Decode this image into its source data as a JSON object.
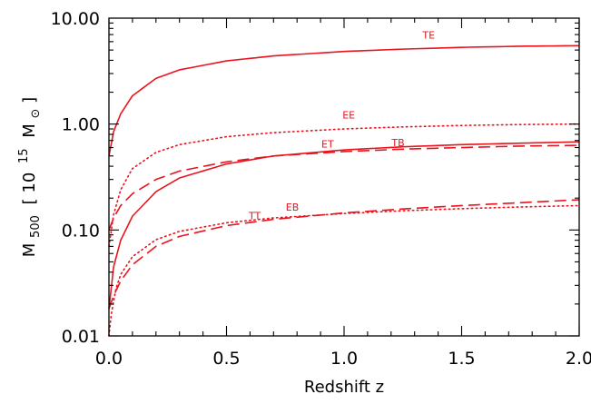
{
  "chart_data": {
    "type": "line",
    "title": "",
    "xlabel": "Redshift  z",
    "ylabel": {
      "main": "M",
      "sub": "500",
      "bracket_open": "[",
      "factor": "10",
      "exp": "15",
      "unit": "M",
      "unit_symbol": "⊙",
      "bracket_close": "]"
    },
    "xlim": [
      0.0,
      2.0
    ],
    "ylim": [
      0.01,
      10.0
    ],
    "yscale": "log",
    "grid": false,
    "line_color": "#e8141e",
    "x_ticks": [
      {
        "value": 0.0,
        "label": "0.0"
      },
      {
        "value": 0.5,
        "label": "0.5"
      },
      {
        "value": 1.0,
        "label": "1.0"
      },
      {
        "value": 1.5,
        "label": "1.5"
      },
      {
        "value": 2.0,
        "label": "2.0"
      }
    ],
    "y_ticks": [
      {
        "value": 0.01,
        "label": "0.01"
      },
      {
        "value": 0.1,
        "label": "0.10"
      },
      {
        "value": 1.0,
        "label": "1.00"
      },
      {
        "value": 10.0,
        "label": "10.00"
      }
    ],
    "series": [
      {
        "name": "TE",
        "style": "solid",
        "label_pos": {
          "x": 1.36,
          "y": 6.4
        },
        "points": [
          [
            0.0,
            0.5
          ],
          [
            0.02,
            0.85
          ],
          [
            0.05,
            1.25
          ],
          [
            0.1,
            1.85
          ],
          [
            0.2,
            2.7
          ],
          [
            0.3,
            3.25
          ],
          [
            0.5,
            3.95
          ],
          [
            0.7,
            4.4
          ],
          [
            1.0,
            4.85
          ],
          [
            1.25,
            5.1
          ],
          [
            1.5,
            5.3
          ],
          [
            1.75,
            5.43
          ],
          [
            2.0,
            5.5
          ]
        ]
      },
      {
        "name": "EE",
        "style": "dotted",
        "label_pos": {
          "x": 1.02,
          "y": 1.13
        },
        "points": [
          [
            0.0,
            0.07
          ],
          [
            0.02,
            0.14
          ],
          [
            0.05,
            0.24
          ],
          [
            0.1,
            0.38
          ],
          [
            0.2,
            0.54
          ],
          [
            0.3,
            0.64
          ],
          [
            0.5,
            0.76
          ],
          [
            0.7,
            0.83
          ],
          [
            1.0,
            0.9
          ],
          [
            1.25,
            0.94
          ],
          [
            1.5,
            0.97
          ],
          [
            1.75,
            0.99
          ],
          [
            2.0,
            1.0
          ]
        ]
      },
      {
        "name": "ET",
        "style": "dashed",
        "label_pos": {
          "x": 0.93,
          "y": 0.6
        },
        "points": [
          [
            0.0,
            0.1
          ],
          [
            0.02,
            0.13
          ],
          [
            0.05,
            0.17
          ],
          [
            0.1,
            0.22
          ],
          [
            0.2,
            0.3
          ],
          [
            0.3,
            0.36
          ],
          [
            0.5,
            0.44
          ],
          [
            0.7,
            0.5
          ],
          [
            1.0,
            0.55
          ],
          [
            1.25,
            0.58
          ],
          [
            1.5,
            0.6
          ],
          [
            1.75,
            0.62
          ],
          [
            2.0,
            0.63
          ]
        ]
      },
      {
        "name": "TB",
        "style": "solid",
        "label_pos": {
          "x": 1.23,
          "y": 0.62
        },
        "points": [
          [
            0.0,
            0.018
          ],
          [
            0.02,
            0.045
          ],
          [
            0.05,
            0.08
          ],
          [
            0.1,
            0.135
          ],
          [
            0.2,
            0.23
          ],
          [
            0.3,
            0.31
          ],
          [
            0.5,
            0.42
          ],
          [
            0.7,
            0.5
          ],
          [
            1.0,
            0.57
          ],
          [
            1.25,
            0.61
          ],
          [
            1.5,
            0.64
          ],
          [
            1.75,
            0.66
          ],
          [
            2.0,
            0.68
          ]
        ]
      },
      {
        "name": "TT",
        "style": "dotted",
        "label_pos": {
          "x": 0.62,
          "y": 0.126
        },
        "points": [
          [
            0.0,
            0.01
          ],
          [
            0.01,
            0.016
          ],
          [
            0.03,
            0.028
          ],
          [
            0.05,
            0.038
          ],
          [
            0.1,
            0.056
          ],
          [
            0.2,
            0.081
          ],
          [
            0.3,
            0.097
          ],
          [
            0.5,
            0.117
          ],
          [
            0.7,
            0.13
          ],
          [
            1.0,
            0.143
          ],
          [
            1.25,
            0.152
          ],
          [
            1.5,
            0.159
          ],
          [
            1.75,
            0.165
          ],
          [
            2.0,
            0.17
          ]
        ]
      },
      {
        "name": "EB",
        "style": "dashed",
        "label_pos": {
          "x": 0.78,
          "y": 0.152
        },
        "points": [
          [
            0.0,
            0.018
          ],
          [
            0.02,
            0.024
          ],
          [
            0.05,
            0.033
          ],
          [
            0.1,
            0.047
          ],
          [
            0.2,
            0.07
          ],
          [
            0.3,
            0.087
          ],
          [
            0.5,
            0.11
          ],
          [
            0.7,
            0.126
          ],
          [
            1.0,
            0.145
          ],
          [
            1.25,
            0.158
          ],
          [
            1.5,
            0.17
          ],
          [
            1.75,
            0.181
          ],
          [
            2.0,
            0.193
          ]
        ]
      }
    ]
  }
}
